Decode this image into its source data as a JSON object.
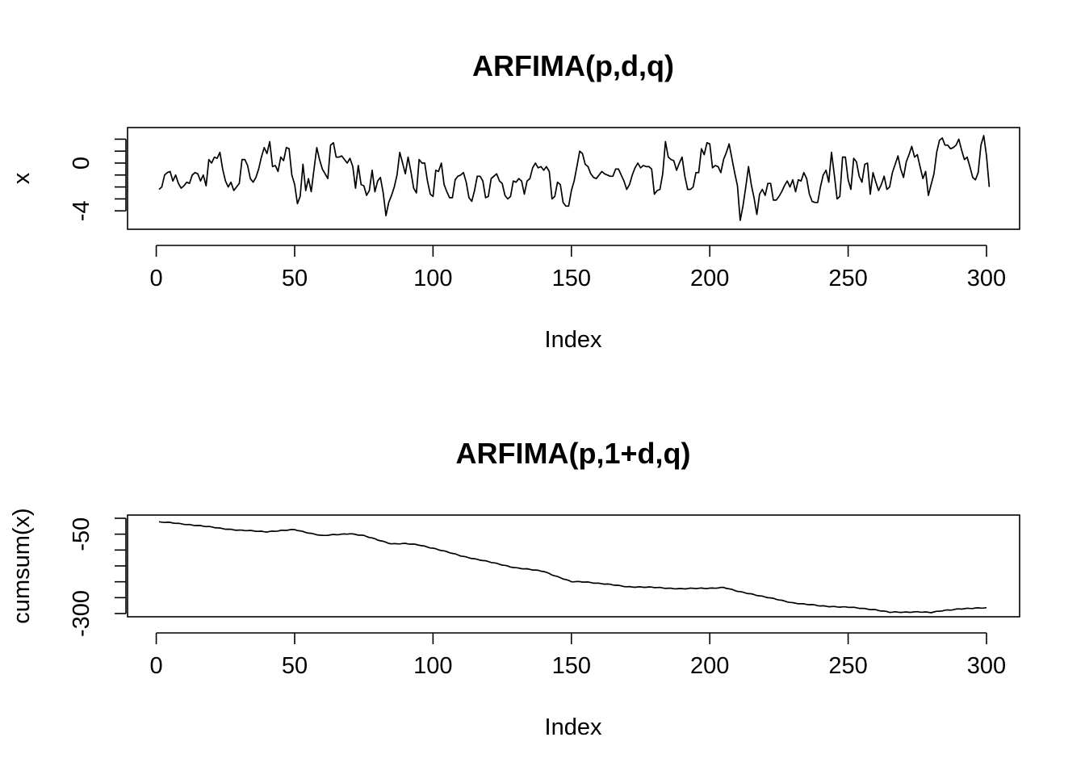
{
  "chart_data": [
    {
      "type": "line",
      "title": "ARFIMA(p,d,q)",
      "xlabel": "Index",
      "ylabel": "x",
      "xlim": [
        1,
        300
      ],
      "ylim": [
        -5,
        2.5
      ],
      "x_ticks": [
        0,
        50,
        100,
        150,
        200,
        250,
        300
      ],
      "y_ticks": [
        -4,
        -3,
        -2,
        -1,
        0,
        1,
        2
      ],
      "y_tick_labels": [
        "-4",
        "",
        "",
        "",
        "0",
        "",
        ""
      ],
      "series": [
        {
          "values": [
            -2.2,
            -2.0,
            -1.0,
            -0.8,
            -0.7,
            -1.5,
            -1.0,
            -1.7,
            -2.1,
            -1.9,
            -1.6,
            -1.7,
            -1.0,
            -0.8,
            -0.9,
            -1.5,
            -1.0,
            -1.9,
            0.3,
            0.0,
            0.5,
            0.4,
            0.9,
            -0.5,
            -1.5,
            -2.0,
            -1.6,
            -2.3,
            -2.0,
            -1.7,
            0.3,
            0.3,
            -0.2,
            -1.3,
            -1.6,
            -1.2,
            -0.5,
            0.5,
            1.3,
            0.8,
            1.8,
            -0.3,
            -0.2,
            -0.7,
            0.5,
            0.2,
            1.3,
            1.2,
            -1.0,
            -1.8,
            -3.4,
            -2.8,
            -0.1,
            -2.3,
            -1.3,
            -2.4,
            -0.5,
            1.3,
            0.3,
            -0.5,
            -0.9,
            -1.3,
            1.5,
            1.7,
            0.5,
            0.5,
            0.6,
            0.3,
            0.0,
            0.4,
            -0.3,
            -2.1,
            -0.2,
            -1.8,
            -1.9,
            -2.7,
            -2.3,
            -0.6,
            -2.4,
            -1.5,
            -1.2,
            -2.5,
            -4.4,
            -3.3,
            -2.7,
            -2.0,
            -1.0,
            0.9,
            0.0,
            -0.9,
            0.5,
            -0.7,
            -2.1,
            -2.5,
            0.3,
            0.0,
            0.0,
            -1.5,
            -2.6,
            -2.8,
            -0.6,
            -0.7,
            0.0,
            -1.8,
            -2.4,
            -2.9,
            -2.9,
            -1.4,
            -1.1,
            -1.0,
            -0.8,
            -1.6,
            -2.9,
            -3.2,
            -2.3,
            -1.1,
            -1.1,
            -1.5,
            -2.9,
            -2.8,
            -1.3,
            -1.1,
            -0.9,
            -1.5,
            -1.7,
            -2.7,
            -3.0,
            -2.8,
            -1.5,
            -1.6,
            -1.3,
            -1.5,
            -2.6,
            -1.5,
            -1.3,
            -0.4,
            0.0,
            -0.4,
            -0.3,
            -0.6,
            -0.3,
            -0.7,
            -3.0,
            -2.8,
            -1.6,
            -1.8,
            -3.3,
            -3.6,
            -3.6,
            -2.3,
            -1.5,
            -0.3,
            1.0,
            0.8,
            -0.1,
            -0.3,
            -0.9,
            -1.2,
            -1.3,
            -1.0,
            -0.7,
            -0.9,
            -1.0,
            -1.1,
            -1.1,
            -0.5,
            -0.5,
            -1.0,
            -1.5,
            -2.2,
            -1.8,
            -1.0,
            -0.4,
            0.0,
            -0.4,
            -0.2,
            -0.3,
            -0.3,
            -0.5,
            -2.6,
            -2.3,
            -2.2,
            -0.9,
            1.8,
            0.5,
            0.3,
            0.2,
            -0.6,
            0.0,
            0.5,
            -1.1,
            -2.2,
            -2.2,
            -2.0,
            -0.8,
            -0.8,
            1.2,
            0.7,
            1.7,
            1.6,
            -0.4,
            -0.2,
            -0.3,
            -0.8,
            0.3,
            0.9,
            1.6,
            0.4,
            -0.8,
            -1.9,
            -4.8,
            -3.6,
            -2.0,
            -0.3,
            -1.8,
            -2.9,
            -4.3,
            -2.6,
            -2.2,
            -2.7,
            -1.7,
            -1.7,
            -3.1,
            -3.1,
            -2.8,
            -2.4,
            -1.9,
            -1.5,
            -2.0,
            -1.4,
            -2.4,
            -1.4,
            -1.5,
            -0.8,
            -1.3,
            -2.6,
            -3.2,
            -3.3,
            -3.3,
            -2.0,
            -1.0,
            -0.6,
            -1.6,
            0.9,
            -1.0,
            -3.0,
            -2.8,
            0.5,
            0.5,
            -1.4,
            -2.2,
            0.4,
            0.1,
            -1.1,
            -1.6,
            -0.1,
            0.0,
            -2.6,
            -0.8,
            -1.6,
            -2.3,
            -1.8,
            -1.1,
            -2.2,
            -2.0,
            -0.8,
            -0.1,
            0.6,
            -0.5,
            -1.2,
            0.1,
            0.7,
            1.4,
            0.5,
            0.7,
            -0.3,
            -1.3,
            -0.7,
            -2.7,
            -1.8,
            -0.9,
            0.9,
            1.9,
            2.1,
            1.5,
            1.5,
            1.2,
            1.3,
            1.5,
            2.0,
            1.1,
            0.3,
            0.5,
            -0.3,
            -1.2,
            -1.4,
            -0.8,
            1.5,
            2.3,
            0.6,
            -2.0
          ]
        }
      ]
    },
    {
      "type": "line",
      "title": "ARFIMA(p,1+d,q)",
      "xlabel": "Index",
      "ylabel": "cumsum(x)",
      "xlim": [
        1,
        300
      ],
      "ylim": [
        -310,
        0
      ],
      "x_ticks": [
        0,
        50,
        100,
        150,
        200,
        250,
        300
      ],
      "y_ticks": [
        -300,
        -250,
        -200,
        -150,
        -100,
        -50,
        0
      ],
      "y_tick_labels": [
        "-300",
        "",
        "",
        "",
        "",
        "-50",
        ""
      ],
      "series": [
        {
          "anchors_x": [
            1,
            5,
            10,
            20,
            30,
            40,
            50,
            60,
            70,
            75,
            80,
            85,
            90,
            95,
            100,
            110,
            120,
            130,
            140,
            145,
            150,
            155,
            160,
            170,
            180,
            190,
            200,
            205,
            210,
            215,
            220,
            230,
            240,
            250,
            260,
            265,
            270,
            275,
            280,
            285,
            290,
            295,
            300
          ],
          "anchors_y": [
            -12,
            -14,
            -18,
            -28,
            -38,
            -42,
            -36,
            -55,
            -48,
            -55,
            -68,
            -80,
            -80,
            -84,
            -94,
            -118,
            -137,
            -156,
            -167,
            -184,
            -200,
            -200,
            -205,
            -215,
            -218,
            -222,
            -220,
            -218,
            -230,
            -238,
            -248,
            -266,
            -276,
            -280,
            -288,
            -296,
            -296,
            -294,
            -297,
            -290,
            -285,
            -284,
            -282
          ]
        }
      ]
    }
  ]
}
